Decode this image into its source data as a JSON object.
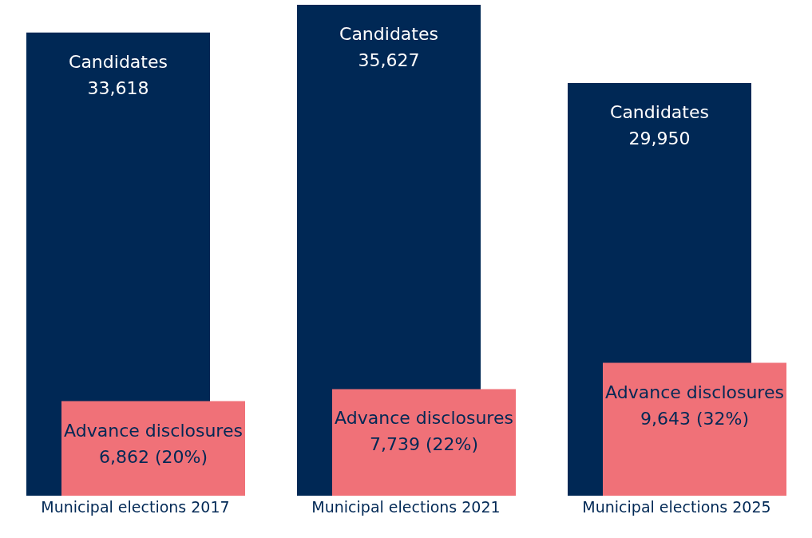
{
  "chart_data": {
    "type": "bar",
    "categories": [
      "Municipal elections 2017",
      "Municipal elections 2021",
      "Municipal elections 2025"
    ],
    "series": [
      {
        "name": "Candidates",
        "color": "#002855",
        "values": [
          33618,
          35627,
          29950
        ],
        "value_labels": [
          "33,618",
          "35,627",
          "29,950"
        ]
      },
      {
        "name": "Advance disclosures",
        "color": "#f07178",
        "values": [
          6862,
          7739,
          9643
        ],
        "value_labels": [
          "6,862 (20%)",
          "7,739 (22%)",
          "9,643 (32%)"
        ]
      }
    ],
    "legend": false,
    "grid": false
  }
}
